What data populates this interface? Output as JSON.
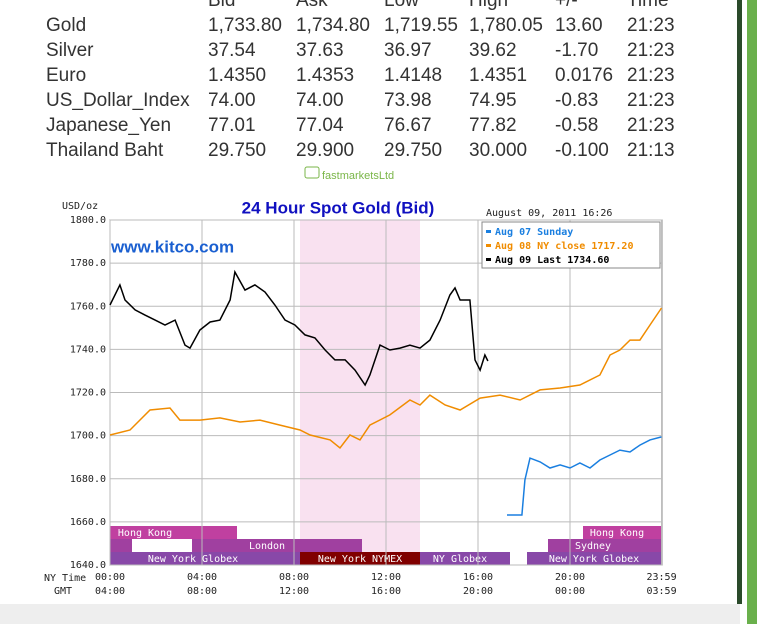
{
  "table": {
    "header": [
      "Bid",
      "Ask",
      "Low",
      "High",
      "+/-",
      "Time"
    ],
    "rows": [
      [
        "Gold",
        "1,733.80",
        "1,734.80",
        "1,719.55",
        "1,780.05",
        "13.60",
        "21:23"
      ],
      [
        "Silver",
        "37.54",
        "37.63",
        "36.97",
        "39.62",
        "-1.70",
        "21:23"
      ],
      [
        "Euro",
        "1.4350",
        "1.4353",
        "1.4148",
        "1.4351",
        "0.0176",
        "21:23"
      ],
      [
        "US_Dollar_Index",
        "74.00",
        "74.00",
        "73.98",
        "74.95",
        "-0.83",
        "21:23"
      ],
      [
        "Japanese_Yen",
        "77.01",
        "77.04",
        "76.67",
        "77.82",
        "-0.58",
        "21:23"
      ],
      [
        "Thailand Baht",
        "29.750",
        "29.900",
        "29.750",
        "30.000",
        "-0.100",
        "21:13"
      ]
    ],
    "source": "fastmarketsLtd"
  },
  "chart_data": {
    "type": "line",
    "title": "24 Hour Spot Gold (Bid)",
    "y_label": "USD/oz",
    "timestamp": "August 09, 2011 16:26",
    "watermark": "www.kitco.com",
    "x_row_label": "NY Time",
    "x2_row_label": "GMT",
    "xlim": [
      0,
      24
    ],
    "ylim": [
      1640,
      1800
    ],
    "xticks": [
      {
        "value": 0,
        "label": "00:00"
      },
      {
        "value": 4,
        "label": "04:00"
      },
      {
        "value": 8,
        "label": "08:00"
      },
      {
        "value": 12,
        "label": "12:00"
      },
      {
        "value": 16,
        "label": "16:00"
      },
      {
        "value": 20,
        "label": "20:00"
      },
      {
        "value": 23.98,
        "label": "23:59"
      }
    ],
    "x2tick_labels": [
      "04:00",
      "08:00",
      "12:00",
      "16:00",
      "20:00",
      "00:00",
      "03:59"
    ],
    "yticks": [
      {
        "value": 1640,
        "label": "1640.0"
      },
      {
        "value": 1660,
        "label": "1660.0"
      },
      {
        "value": 1680,
        "label": "1680.0"
      },
      {
        "value": 1700,
        "label": "1700.0"
      },
      {
        "value": 1720,
        "label": "1720.0"
      },
      {
        "value": 1740,
        "label": "1740.0"
      },
      {
        "value": 1760,
        "label": "1760.0"
      },
      {
        "value": 1780,
        "label": "1780.0"
      },
      {
        "value": 1800,
        "label": "1800.0"
      }
    ],
    "grid": true,
    "sessions": [
      "Hong Kong",
      "London",
      "New York Globex",
      "New York NYMEX",
      "NY Globex",
      "Sydney",
      "Hong Kong",
      "New York Globex"
    ],
    "series": [
      {
        "name": "Aug 07 Sunday",
        "color": "#1a7fe0",
        "x": [
          17.26,
          17.91,
          18.04,
          18.26,
          18.7,
          19.13,
          19.57,
          20,
          20.43,
          20.87,
          21.3,
          21.74,
          22.17,
          22.61,
          23.04,
          23.48,
          23.98
        ],
        "values": [
          1663.2,
          1663.2,
          1679.4,
          1689.6,
          1687.8,
          1685.0,
          1686.4,
          1685.0,
          1687.3,
          1685.0,
          1688.7,
          1691.0,
          1693.3,
          1692.4,
          1695.6,
          1698.0,
          1699.4
        ]
      },
      {
        "name": "Aug 08 NY close 1717.20",
        "color": "#f08c00",
        "x": [
          0,
          0.87,
          1.74,
          2.61,
          3.04,
          3.91,
          4.78,
          5.65,
          6.52,
          7.39,
          8.26,
          8.7,
          9.57,
          10,
          10.43,
          10.87,
          11.3,
          12.17,
          13.04,
          13.48,
          13.91,
          14.57,
          15.22,
          16.09,
          16.96,
          17.83,
          18.7,
          19.57,
          20.43,
          21.3,
          21.74,
          22.17,
          22.61,
          23.04,
          23.48,
          23.98
        ],
        "values": [
          1700.3,
          1702.6,
          1711.9,
          1712.8,
          1707.2,
          1707.2,
          1708.2,
          1706.3,
          1707.2,
          1704.9,
          1702.6,
          1700.3,
          1698.0,
          1694.3,
          1700.3,
          1698.0,
          1704.9,
          1709.6,
          1716.5,
          1714.2,
          1718.8,
          1714.2,
          1711.9,
          1717.4,
          1718.8,
          1716.5,
          1721.2,
          1722.1,
          1723.5,
          1728.1,
          1737.4,
          1739.7,
          1744.3,
          1744.3,
          1751.3,
          1759.2
        ]
      },
      {
        "name": "Aug 09 Last 1734.60",
        "color": "#000000",
        "x": [
          0,
          0.43,
          0.65,
          1.09,
          1.52,
          1.96,
          2.39,
          2.83,
          3.26,
          3.48,
          3.91,
          4.35,
          4.78,
          5.22,
          5.43,
          5.87,
          6.3,
          6.74,
          7.17,
          7.61,
          8.04,
          8.48,
          8.91,
          9.35,
          9.78,
          10.22,
          10.65,
          11.09,
          11.3,
          11.74,
          12.17,
          12.61,
          13.04,
          13.48,
          13.91,
          14.35,
          14.78,
          15,
          15.22,
          15.65,
          15.87,
          16.09,
          16.3,
          16.43
        ],
        "values": [
          1760.6,
          1769.9,
          1762.9,
          1758.3,
          1755.9,
          1753.6,
          1751.3,
          1753.6,
          1742.0,
          1740.6,
          1749.0,
          1752.7,
          1753.6,
          1762.9,
          1775.9,
          1767.5,
          1769.9,
          1766.6,
          1760.6,
          1753.6,
          1751.3,
          1746.7,
          1745.3,
          1739.7,
          1735.1,
          1735.1,
          1730.4,
          1723.5,
          1728.1,
          1742.0,
          1739.7,
          1740.6,
          1742.0,
          1740.6,
          1744.3,
          1753.6,
          1765.2,
          1768.5,
          1762.9,
          1762.9,
          1735.1,
          1730.4,
          1737.4,
          1734.6
        ]
      }
    ]
  }
}
